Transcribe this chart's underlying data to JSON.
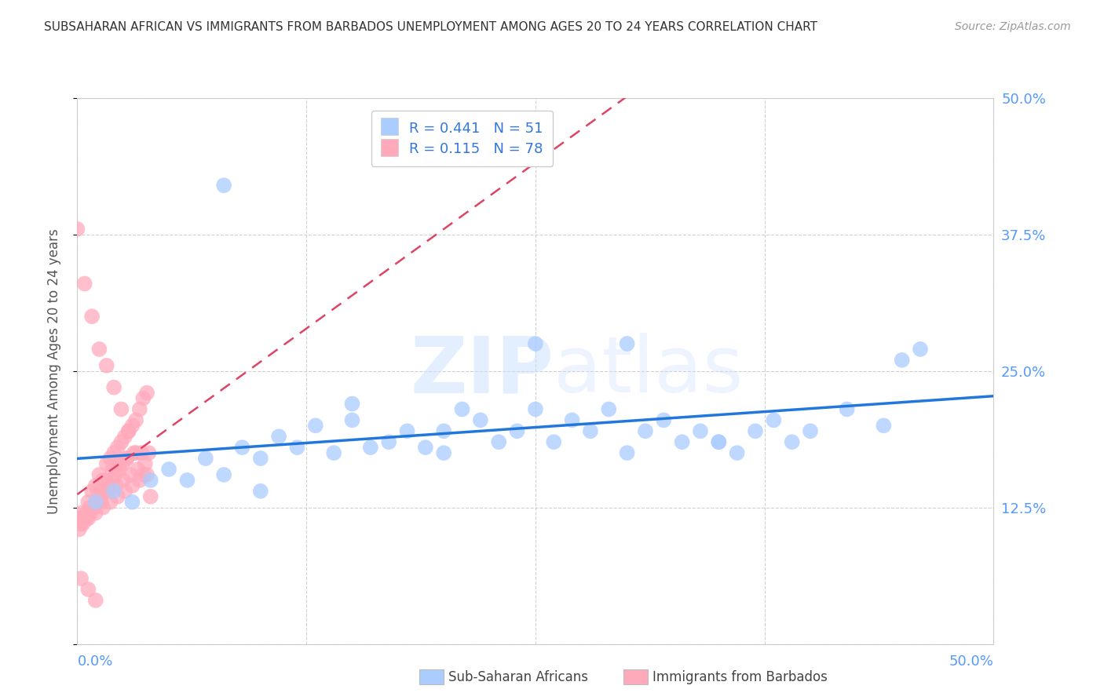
{
  "title": "SUBSAHARAN AFRICAN VS IMMIGRANTS FROM BARBADOS UNEMPLOYMENT AMONG AGES 20 TO 24 YEARS CORRELATION CHART",
  "source": "Source: ZipAtlas.com",
  "ylabel": "Unemployment Among Ages 20 to 24 years",
  "xlim": [
    0,
    0.5
  ],
  "ylim": [
    0,
    0.5
  ],
  "xticks": [
    0.0,
    0.125,
    0.25,
    0.375,
    0.5
  ],
  "xtick_labels": [
    "",
    "",
    "",
    "",
    ""
  ],
  "yticks": [
    0.0,
    0.125,
    0.25,
    0.375,
    0.5
  ],
  "ytick_labels_right": [
    "",
    "12.5%",
    "25.0%",
    "37.5%",
    "50.0%"
  ],
  "blue_R": 0.441,
  "blue_N": 51,
  "pink_R": 0.115,
  "pink_N": 78,
  "blue_color": "#aaccff",
  "pink_color": "#ffaabb",
  "blue_line_color": "#2277dd",
  "pink_line_color": "#dd4466",
  "legend_label_blue": "Sub-Saharan Africans",
  "legend_label_pink": "Immigrants from Barbados",
  "watermark_zip": "ZIP",
  "watermark_atlas": "atlas",
  "blue_scatter_x": [
    0.01,
    0.02,
    0.03,
    0.04,
    0.05,
    0.06,
    0.07,
    0.08,
    0.09,
    0.1,
    0.11,
    0.12,
    0.13,
    0.14,
    0.15,
    0.16,
    0.17,
    0.18,
    0.19,
    0.2,
    0.21,
    0.22,
    0.23,
    0.24,
    0.25,
    0.26,
    0.27,
    0.28,
    0.29,
    0.3,
    0.31,
    0.32,
    0.33,
    0.34,
    0.35,
    0.36,
    0.37,
    0.38,
    0.39,
    0.4,
    0.42,
    0.44,
    0.46,
    0.3,
    0.35,
    0.25,
    0.15,
    0.1,
    0.08,
    0.2,
    0.45
  ],
  "blue_scatter_y": [
    0.13,
    0.14,
    0.13,
    0.15,
    0.16,
    0.15,
    0.17,
    0.155,
    0.18,
    0.17,
    0.19,
    0.18,
    0.2,
    0.175,
    0.22,
    0.18,
    0.185,
    0.195,
    0.18,
    0.195,
    0.215,
    0.205,
    0.185,
    0.195,
    0.215,
    0.185,
    0.205,
    0.195,
    0.215,
    0.175,
    0.195,
    0.205,
    0.185,
    0.195,
    0.185,
    0.175,
    0.195,
    0.205,
    0.185,
    0.195,
    0.215,
    0.2,
    0.27,
    0.275,
    0.185,
    0.275,
    0.205,
    0.14,
    0.42,
    0.175,
    0.26
  ],
  "pink_scatter_x": [
    0.0,
    0.002,
    0.004,
    0.006,
    0.008,
    0.01,
    0.012,
    0.014,
    0.016,
    0.018,
    0.02,
    0.022,
    0.024,
    0.026,
    0.028,
    0.03,
    0.032,
    0.034,
    0.036,
    0.038,
    0.003,
    0.007,
    0.011,
    0.015,
    0.019,
    0.023,
    0.027,
    0.031,
    0.035,
    0.039,
    0.001,
    0.005,
    0.009,
    0.013,
    0.017,
    0.021,
    0.025,
    0.029,
    0.033,
    0.037,
    0.002,
    0.006,
    0.01,
    0.014,
    0.018,
    0.022,
    0.026,
    0.03,
    0.034,
    0.038,
    0.001,
    0.003,
    0.005,
    0.007,
    0.009,
    0.011,
    0.013,
    0.015,
    0.017,
    0.019,
    0.021,
    0.023,
    0.025,
    0.027,
    0.0,
    0.004,
    0.008,
    0.012,
    0.016,
    0.02,
    0.024,
    0.028,
    0.032,
    0.036,
    0.04,
    0.002,
    0.006,
    0.01
  ],
  "pink_scatter_y": [
    0.115,
    0.12,
    0.115,
    0.13,
    0.14,
    0.145,
    0.155,
    0.15,
    0.165,
    0.17,
    0.175,
    0.18,
    0.185,
    0.19,
    0.195,
    0.2,
    0.205,
    0.215,
    0.225,
    0.23,
    0.115,
    0.125,
    0.14,
    0.15,
    0.16,
    0.165,
    0.17,
    0.175,
    0.175,
    0.175,
    0.115,
    0.12,
    0.125,
    0.13,
    0.14,
    0.145,
    0.15,
    0.155,
    0.16,
    0.165,
    0.11,
    0.115,
    0.12,
    0.125,
    0.13,
    0.135,
    0.14,
    0.145,
    0.15,
    0.155,
    0.105,
    0.11,
    0.115,
    0.12,
    0.125,
    0.13,
    0.135,
    0.14,
    0.145,
    0.15,
    0.155,
    0.16,
    0.165,
    0.17,
    0.38,
    0.33,
    0.3,
    0.27,
    0.255,
    0.235,
    0.215,
    0.195,
    0.175,
    0.155,
    0.135,
    0.06,
    0.05,
    0.04
  ]
}
